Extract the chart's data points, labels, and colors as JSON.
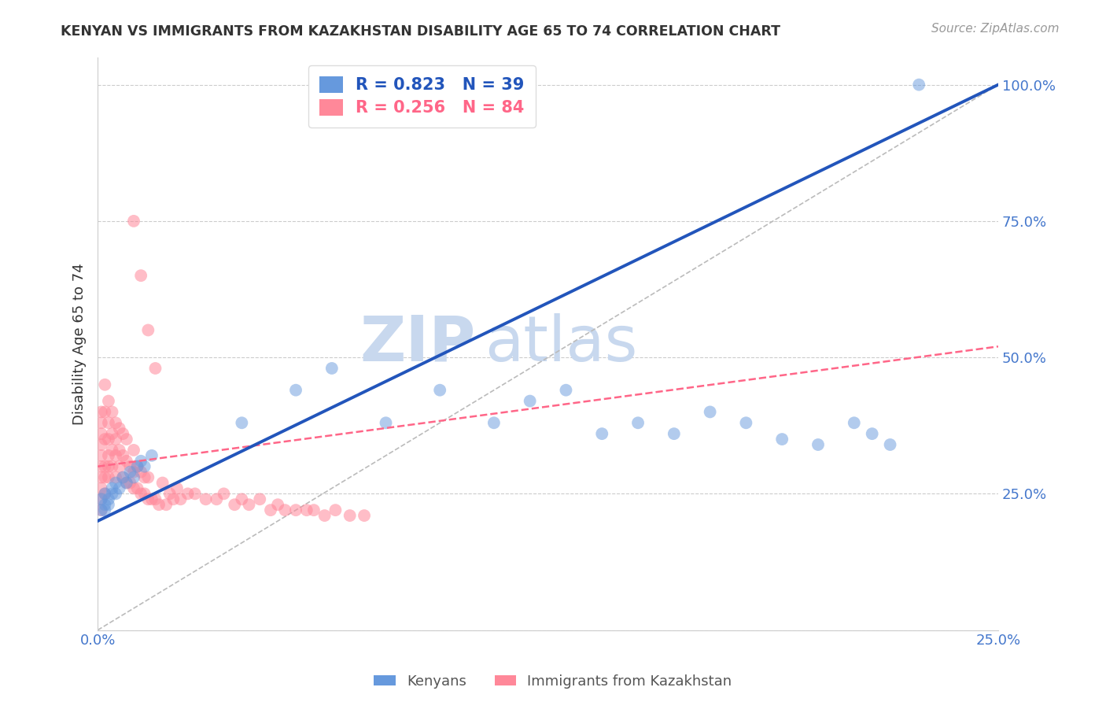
{
  "title": "KENYAN VS IMMIGRANTS FROM KAZAKHSTAN DISABILITY AGE 65 TO 74 CORRELATION CHART",
  "source_text": "Source: ZipAtlas.com",
  "ylabel": "Disability Age 65 to 74",
  "xlim": [
    0.0,
    0.25
  ],
  "ylim": [
    0.0,
    1.05
  ],
  "blue_color": "#6699DD",
  "pink_color": "#FF8899",
  "blue_line_color": "#2255BB",
  "pink_line_color": "#FF6688",
  "ref_line_color": "#BBBBBB",
  "grid_color": "#CCCCCC",
  "tick_label_color": "#4477CC",
  "background_color": "#FFFFFF",
  "watermark_color": "#C8D8EE",
  "kenyan_R": 0.823,
  "kenyan_N": 39,
  "kazakh_R": 0.256,
  "kazakh_N": 84,
  "kenyan_x": [
    0.001,
    0.001,
    0.002,
    0.002,
    0.002,
    0.003,
    0.003,
    0.004,
    0.004,
    0.005,
    0.005,
    0.006,
    0.007,
    0.008,
    0.009,
    0.01,
    0.011,
    0.012,
    0.013,
    0.015,
    0.04,
    0.055,
    0.065,
    0.08,
    0.095,
    0.11,
    0.12,
    0.13,
    0.14,
    0.15,
    0.16,
    0.17,
    0.18,
    0.19,
    0.2,
    0.21,
    0.215,
    0.22,
    0.228
  ],
  "kenyan_y": [
    0.22,
    0.24,
    0.23,
    0.22,
    0.25,
    0.24,
    0.23,
    0.25,
    0.26,
    0.25,
    0.27,
    0.26,
    0.28,
    0.27,
    0.29,
    0.28,
    0.3,
    0.31,
    0.3,
    0.32,
    0.38,
    0.44,
    0.48,
    0.38,
    0.44,
    0.38,
    0.42,
    0.44,
    0.36,
    0.38,
    0.36,
    0.4,
    0.38,
    0.35,
    0.34,
    0.38,
    0.36,
    0.34,
    1.0
  ],
  "kazakh_x": [
    0.001,
    0.001,
    0.001,
    0.001,
    0.001,
    0.001,
    0.001,
    0.001,
    0.001,
    0.001,
    0.002,
    0.002,
    0.002,
    0.002,
    0.002,
    0.002,
    0.003,
    0.003,
    0.003,
    0.003,
    0.003,
    0.003,
    0.004,
    0.004,
    0.004,
    0.004,
    0.005,
    0.005,
    0.005,
    0.005,
    0.006,
    0.006,
    0.006,
    0.007,
    0.007,
    0.007,
    0.008,
    0.008,
    0.008,
    0.009,
    0.009,
    0.01,
    0.01,
    0.01,
    0.011,
    0.011,
    0.012,
    0.012,
    0.013,
    0.013,
    0.014,
    0.014,
    0.015,
    0.016,
    0.017,
    0.018,
    0.019,
    0.02,
    0.021,
    0.022,
    0.023,
    0.025,
    0.027,
    0.03,
    0.033,
    0.035,
    0.038,
    0.04,
    0.042,
    0.045,
    0.048,
    0.05,
    0.052,
    0.055,
    0.058,
    0.06,
    0.063,
    0.066,
    0.07,
    0.074,
    0.01,
    0.012,
    0.014,
    0.016
  ],
  "kazakh_y": [
    0.22,
    0.24,
    0.26,
    0.28,
    0.3,
    0.32,
    0.34,
    0.36,
    0.38,
    0.4,
    0.25,
    0.28,
    0.3,
    0.35,
    0.4,
    0.45,
    0.28,
    0.3,
    0.32,
    0.35,
    0.38,
    0.42,
    0.3,
    0.33,
    0.36,
    0.4,
    0.28,
    0.32,
    0.35,
    0.38,
    0.3,
    0.33,
    0.37,
    0.28,
    0.32,
    0.36,
    0.27,
    0.31,
    0.35,
    0.27,
    0.3,
    0.26,
    0.29,
    0.33,
    0.26,
    0.3,
    0.25,
    0.29,
    0.25,
    0.28,
    0.24,
    0.28,
    0.24,
    0.24,
    0.23,
    0.27,
    0.23,
    0.25,
    0.24,
    0.26,
    0.24,
    0.25,
    0.25,
    0.24,
    0.24,
    0.25,
    0.23,
    0.24,
    0.23,
    0.24,
    0.22,
    0.23,
    0.22,
    0.22,
    0.22,
    0.22,
    0.21,
    0.22,
    0.21,
    0.21,
    0.75,
    0.65,
    0.55,
    0.48
  ]
}
